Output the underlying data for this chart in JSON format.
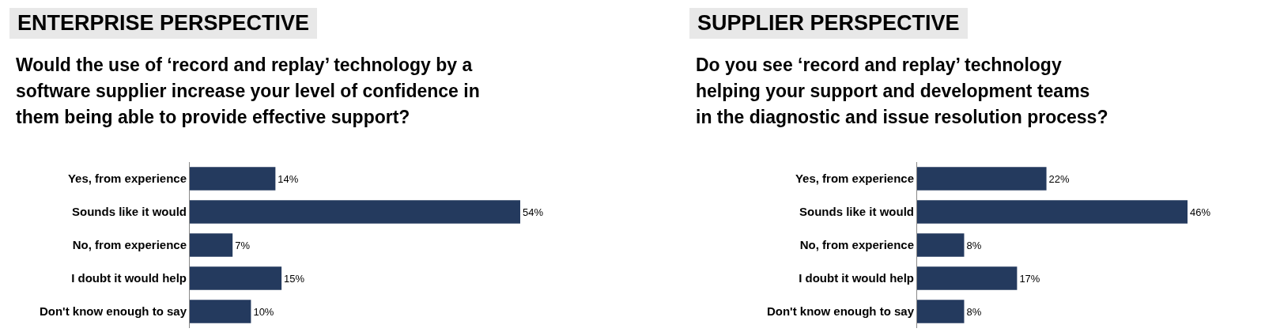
{
  "chart_data": [
    {
      "type": "bar",
      "orientation": "horizontal",
      "title": "ENTERPRISE PERSPECTIVE",
      "subtitle": "Would the use of ‘record and replay’ technology by a\nsoftware supplier increase your level of confidence in\nthem being able to provide effective support?",
      "categories": [
        "Yes, from experience",
        "Sounds like it would",
        "No, from experience",
        "I doubt it would help",
        "Don't know enough to say"
      ],
      "values": [
        14,
        54,
        7,
        15,
        10
      ],
      "value_labels": [
        "14%",
        "54%",
        "7%",
        "15%",
        "10%"
      ],
      "color": "#243a5e"
    },
    {
      "type": "bar",
      "orientation": "horizontal",
      "title": "SUPPLIER PERSPECTIVE",
      "subtitle": "Do you see ‘record and replay’ technology\nhelping your support and development teams\nin the diagnostic and issue resolution process?",
      "categories": [
        "Yes, from experience",
        "Sounds like it would",
        "No, from experience",
        "I doubt it would help",
        "Don't know enough to say"
      ],
      "values": [
        22,
        46,
        8,
        17,
        8
      ],
      "value_labels": [
        "22%",
        "46%",
        "8%",
        "17%",
        "8%"
      ],
      "color": "#243a5e"
    }
  ]
}
